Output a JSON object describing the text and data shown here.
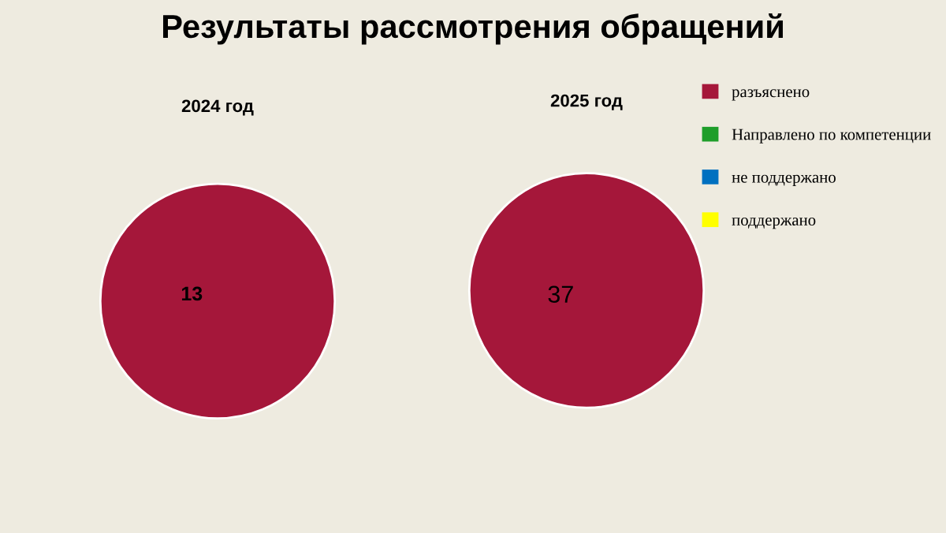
{
  "chart_data": [
    {
      "type": "pie",
      "title": "Результаты рассмотрения обращений",
      "subtitle": "2024 год",
      "categories": [
        null,
        null,
        null,
        null
      ],
      "values": [
        13,
        0,
        0,
        0
      ],
      "colors": [
        "#a5173a",
        "#1e9e2a",
        "#0070c0",
        "#ffff00"
      ],
      "data_labels": true
    },
    {
      "type": "pie",
      "title": "2025 год",
      "categories": [
        "разъяснено",
        "Направлено по компетенции",
        "не поддержано",
        "поддержано"
      ],
      "values": [
        37,
        0,
        0,
        0
      ],
      "colors": [
        "#a5173a",
        "#1e9e2a",
        "#0070c0",
        "#ffff00"
      ],
      "data_labels": true,
      "legend": "right"
    }
  ]
}
